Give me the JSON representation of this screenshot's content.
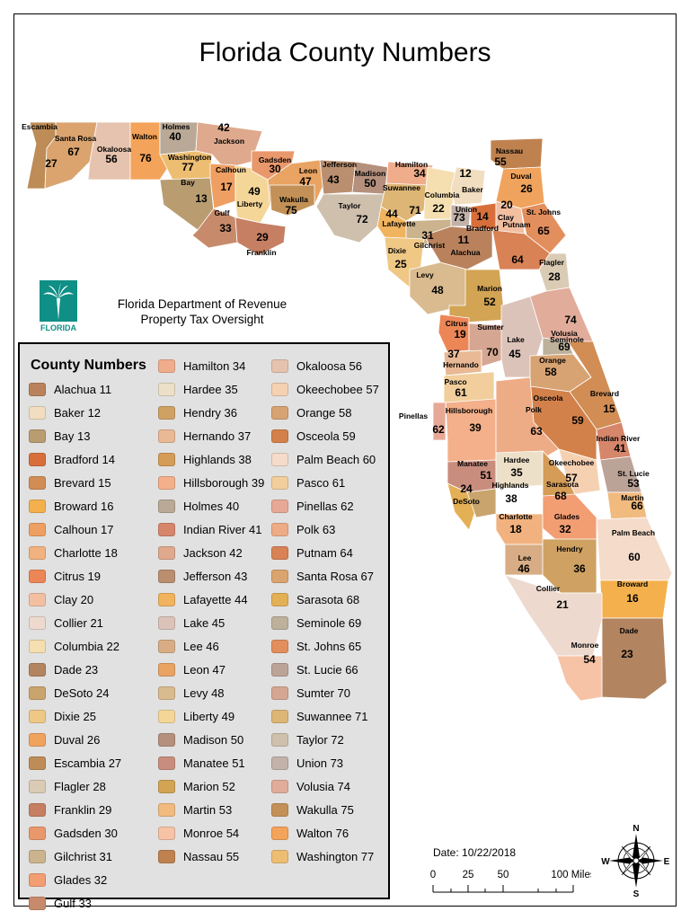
{
  "title": "Florida County Numbers",
  "agency": {
    "line1": "Florida Department of Revenue",
    "line2": "Property Tax Oversight"
  },
  "logo": {
    "label": "FLORIDA",
    "icon": "palm-tree-icon",
    "color": "#0f8f86"
  },
  "legend": {
    "title": "County Numbers",
    "items": [
      {
        "label": "Alachua 11",
        "color": "#b9825d"
      },
      {
        "label": "Baker 12",
        "color": "#f1ddbf"
      },
      {
        "label": "Bay 13",
        "color": "#b99c70"
      },
      {
        "label": "Bradford 14",
        "color": "#d86f3b"
      },
      {
        "label": "Brevard 15",
        "color": "#d18d54"
      },
      {
        "label": "Broward 16",
        "color": "#f4b04d"
      },
      {
        "label": "Calhoun 17",
        "color": "#ef9f61"
      },
      {
        "label": "Charlotte 18",
        "color": "#f1b27f"
      },
      {
        "label": "Citrus 19",
        "color": "#ed8656"
      },
      {
        "label": "Clay 20",
        "color": "#f2bfa1"
      },
      {
        "label": "Collier 21",
        "color": "#eed9ce"
      },
      {
        "label": "Columbia 22",
        "color": "#f5dfb0"
      },
      {
        "label": "Dade 23",
        "color": "#b28460"
      },
      {
        "label": "DeSoto 24",
        "color": "#c9a46d"
      },
      {
        "label": "Dixie 25",
        "color": "#efc886"
      },
      {
        "label": "Duval 26",
        "color": "#f0a35c"
      },
      {
        "label": "Escambia 27",
        "color": "#bd8c57"
      },
      {
        "label": "Flagler 28",
        "color": "#dacbb4"
      },
      {
        "label": "Franklin 29",
        "color": "#c67f62"
      },
      {
        "label": "Gadsden 30",
        "color": "#e9986c"
      },
      {
        "label": "Gilchrist 31",
        "color": "#cbb48d"
      },
      {
        "label": "Glades 32",
        "color": "#f39d73"
      },
      {
        "label": "Gulf 33",
        "color": "#c78b6b"
      },
      {
        "label": "Hamilton 34",
        "color": "#f0ad8b"
      },
      {
        "label": "Hardee 35",
        "color": "#ede0c8"
      },
      {
        "label": "Hendry 36",
        "color": "#cfa263"
      },
      {
        "label": "Hernando 37",
        "color": "#e9b995"
      },
      {
        "label": "Highlands 38",
        "color": "#d49c57"
      },
      {
        "label": "Hillsborough 39",
        "color": "#f3b08a"
      },
      {
        "label": "Holmes 40",
        "color": "#b9a996"
      },
      {
        "label": "Indian River 41",
        "color": "#d6866b"
      },
      {
        "label": "Jackson 42",
        "color": "#dfa98e"
      },
      {
        "label": "Jefferson 43",
        "color": "#b98f70"
      },
      {
        "label": "Lafayette 44",
        "color": "#f0b35e"
      },
      {
        "label": "Lake 45",
        "color": "#dcc3b9"
      },
      {
        "label": "Lee 46",
        "color": "#d8ad85"
      },
      {
        "label": "Leon 47",
        "color": "#e9a363"
      },
      {
        "label": "Levy 48",
        "color": "#d9bb8f"
      },
      {
        "label": "Liberty 49",
        "color": "#f5d699"
      },
      {
        "label": "Madison 50",
        "color": "#b4907d"
      },
      {
        "label": "Manatee 51",
        "color": "#c98d7e"
      },
      {
        "label": "Marion 52",
        "color": "#d2a453"
      },
      {
        "label": "Martin 53",
        "color": "#f1ba7f"
      },
      {
        "label": "Monroe 54",
        "color": "#f6c3a6"
      },
      {
        "label": "Nassau 55",
        "color": "#bf824f"
      },
      {
        "label": "Okaloosa 56",
        "color": "#e6c3ae"
      },
      {
        "label": "Okeechobee 57",
        "color": "#f5d1b2"
      },
      {
        "label": "Orange 58",
        "color": "#d8a372"
      },
      {
        "label": "Osceola 59",
        "color": "#d3814a"
      },
      {
        "label": "Palm Beach 60",
        "color": "#f5dbc9"
      },
      {
        "label": "Pasco 61",
        "color": "#f1ce9c"
      },
      {
        "label": "Pinellas 62",
        "color": "#e7a996"
      },
      {
        "label": "Polk 63",
        "color": "#eeac86"
      },
      {
        "label": "Putnam 64",
        "color": "#d98256"
      },
      {
        "label": "Santa Rosa 67",
        "color": "#dba46e"
      },
      {
        "label": "Sarasota 68",
        "color": "#e4b055"
      },
      {
        "label": "Seminole 69",
        "color": "#bdb19b"
      },
      {
        "label": "St. Johns 65",
        "color": "#e38e5d"
      },
      {
        "label": "St. Lucie 66",
        "color": "#bba397"
      },
      {
        "label": "Sumter 70",
        "color": "#d5a792"
      },
      {
        "label": "Suwannee 71",
        "color": "#ddb575"
      },
      {
        "label": "Taylor 72",
        "color": "#cec0ad"
      },
      {
        "label": "Union 73",
        "color": "#c2b2aa"
      },
      {
        "label": "Volusia 74",
        "color": "#e2ac9b"
      },
      {
        "label": "Wakulla 75",
        "color": "#c39157"
      },
      {
        "label": "Walton 76",
        "color": "#f4a35a"
      },
      {
        "label": "Washington 77",
        "color": "#edbe72"
      }
    ]
  },
  "counties": [
    {
      "name": "Escambia",
      "num": "27"
    },
    {
      "name": "Santa Rosa",
      "num": "67"
    },
    {
      "name": "Okaloosa",
      "num": "56"
    },
    {
      "name": "Walton",
      "num": "76"
    },
    {
      "name": "Holmes",
      "num": "40"
    },
    {
      "name": "Jackson",
      "num": "42"
    },
    {
      "name": "Washington",
      "num": "77"
    },
    {
      "name": "Bay",
      "num": "13"
    },
    {
      "name": "Calhoun",
      "num": "17"
    },
    {
      "name": "Liberty",
      "num": "49"
    },
    {
      "name": "Gulf",
      "num": "33"
    },
    {
      "name": "Franklin",
      "num": "29"
    },
    {
      "name": "Gadsden",
      "num": "30"
    },
    {
      "name": "Leon",
      "num": "47"
    },
    {
      "name": "Wakulla",
      "num": "75"
    },
    {
      "name": "Jefferson",
      "num": "43"
    },
    {
      "name": "Madison",
      "num": "50"
    },
    {
      "name": "Taylor",
      "num": "72"
    },
    {
      "name": "Hamilton",
      "num": "34"
    },
    {
      "name": "Suwannee",
      "num": "71"
    },
    {
      "name": "Lafayette",
      "num": "44"
    },
    {
      "name": "Columbia",
      "num": "22"
    },
    {
      "name": "Baker",
      "num": "12"
    },
    {
      "name": "Union",
      "num": "73"
    },
    {
      "name": "Bradford",
      "num": "14"
    },
    {
      "name": "Gilchrist",
      "num": "31"
    },
    {
      "name": "Alachua",
      "num": "11"
    },
    {
      "name": "Dixie",
      "num": "25"
    },
    {
      "name": "Nassau",
      "num": "55"
    },
    {
      "name": "Duval",
      "num": "26"
    },
    {
      "name": "Clay",
      "num": "20"
    },
    {
      "name": "St. Johns",
      "num": "65"
    },
    {
      "name": "Putnam",
      "num": "64"
    },
    {
      "name": "Flagler",
      "num": "28"
    },
    {
      "name": "Levy",
      "num": "48"
    },
    {
      "name": "Marion",
      "num": "52"
    },
    {
      "name": "Volusia",
      "num": "74"
    },
    {
      "name": "Citrus",
      "num": "19"
    },
    {
      "name": "Sumter",
      "num": "70"
    },
    {
      "name": "Lake",
      "num": "45"
    },
    {
      "name": "Seminole",
      "num": "69"
    },
    {
      "name": "Hernando",
      "num": "37"
    },
    {
      "name": "Orange",
      "num": "58"
    },
    {
      "name": "Brevard",
      "num": "15"
    },
    {
      "name": "Pasco",
      "num": "61"
    },
    {
      "name": "Osceola",
      "num": "59"
    },
    {
      "name": "Pinellas",
      "num": "62"
    },
    {
      "name": "Hillsborough",
      "num": "39"
    },
    {
      "name": "Polk",
      "num": "63"
    },
    {
      "name": "Indian River",
      "num": "41"
    },
    {
      "name": "Manatee",
      "num": "51"
    },
    {
      "name": "Hardee",
      "num": "35"
    },
    {
      "name": "Okeechobee",
      "num": "57"
    },
    {
      "name": "St. Lucie",
      "num": "66"
    },
    {
      "name": "Highlands",
      "num": "38"
    },
    {
      "name": "Sarasota",
      "num": "68"
    },
    {
      "name": "DeSoto",
      "num": "24"
    },
    {
      "name": "Martin",
      "num": "53"
    },
    {
      "name": "Charlotte",
      "num": "18"
    },
    {
      "name": "Glades",
      "num": "32"
    },
    {
      "name": "Lee",
      "num": "46"
    },
    {
      "name": "Hendry",
      "num": "36"
    },
    {
      "name": "Palm Beach",
      "num": "60"
    },
    {
      "name": "Broward",
      "num": "16"
    },
    {
      "name": "Collier",
      "num": "21"
    },
    {
      "name": "Dade",
      "num": "23"
    },
    {
      "name": "Monroe",
      "num": "54"
    }
  ],
  "date": "Date: 10/22/2018",
  "scale": {
    "ticks": [
      "0",
      "25",
      "50",
      "100 Miles"
    ]
  },
  "compass": {
    "n": "N",
    "s": "S",
    "e": "E",
    "w": "W"
  }
}
